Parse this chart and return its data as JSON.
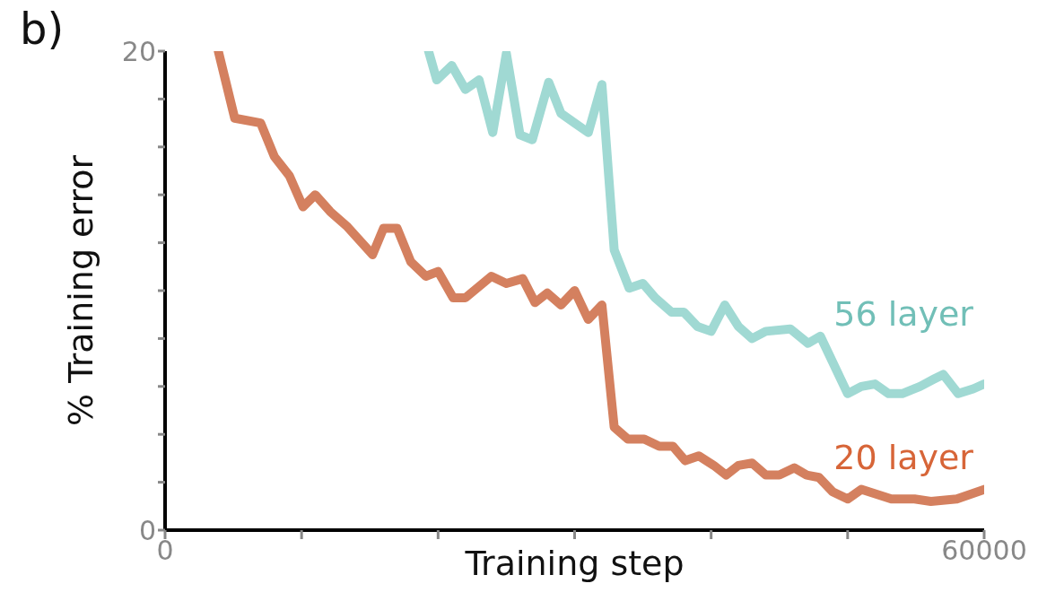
{
  "chart_data": {
    "type": "line",
    "xlabel": "Training step",
    "ylabel": "% Training error",
    "annotations": [
      "b)"
    ],
    "xlim": [
      0,
      60000
    ],
    "ylim": [
      0,
      20
    ],
    "xticks": [
      0,
      {
        "value": 10000,
        "label": null
      },
      {
        "value": 20000,
        "label": null
      },
      {
        "value": 30000,
        "label": null
      },
      {
        "value": 40000,
        "label": null
      },
      {
        "value": 50000,
        "label": null
      },
      60000
    ],
    "yticks": [
      0,
      {
        "value": 2,
        "label": null
      },
      {
        "value": 4,
        "label": null
      },
      {
        "value": 6,
        "label": null
      },
      {
        "value": 8,
        "label": null
      },
      {
        "value": 10,
        "label": null
      },
      {
        "value": 12,
        "label": null
      },
      {
        "value": 14,
        "label": null
      },
      {
        "value": 16,
        "label": null
      },
      {
        "value": 18,
        "label": null
      },
      20
    ],
    "grid": false,
    "legend": false,
    "series": [
      {
        "name": "56 layer",
        "color": "#a0d9d3",
        "x": [
          19300,
          19900,
          21000,
          22000,
          23000,
          24000,
          25000,
          26000,
          26900,
          28100,
          29000,
          30000,
          31000,
          32000,
          32900,
          34000,
          35000,
          35900,
          37100,
          38000,
          39000,
          40000,
          41000,
          42000,
          43000,
          44000,
          45800,
          47100,
          48000,
          50000,
          51000,
          52000,
          53000,
          54000,
          55300,
          56300,
          57000,
          58100,
          59200,
          60000
        ],
        "values": [
          20.0,
          18.8,
          19.4,
          18.4,
          18.8,
          16.6,
          19.9,
          16.5,
          16.3,
          18.7,
          17.4,
          17.0,
          16.6,
          18.6,
          11.7,
          10.1,
          10.3,
          9.7,
          9.1,
          9.1,
          8.5,
          8.3,
          9.4,
          8.5,
          8.0,
          8.3,
          8.4,
          7.8,
          8.1,
          5.7,
          6.0,
          6.1,
          5.7,
          5.7,
          6.0,
          6.3,
          6.5,
          5.7,
          5.9,
          6.1
        ]
      },
      {
        "name": "20 layer",
        "color": "#d4805f",
        "x": [
          3900,
          5100,
          7000,
          8000,
          9100,
          10100,
          11000,
          12100,
          13300,
          15200,
          16000,
          17000,
          18000,
          19100,
          20000,
          21100,
          22000,
          23900,
          25000,
          26200,
          27100,
          28000,
          29000,
          30000,
          31000,
          32000,
          32900,
          33900,
          35100,
          36200,
          37200,
          38100,
          39100,
          40200,
          41100,
          42000,
          43000,
          44000,
          45000,
          46100,
          47000,
          47900,
          48900,
          50000,
          51000,
          53200,
          54900,
          56100,
          58000,
          60000
        ],
        "values": [
          20.0,
          17.2,
          17.0,
          15.6,
          14.8,
          13.5,
          14.0,
          13.3,
          12.7,
          11.5,
          12.6,
          12.6,
          11.2,
          10.6,
          10.8,
          9.7,
          9.7,
          10.6,
          10.3,
          10.5,
          9.5,
          9.9,
          9.4,
          10.0,
          8.8,
          9.4,
          4.3,
          3.8,
          3.8,
          3.5,
          3.5,
          2.9,
          3.1,
          2.7,
          2.3,
          2.7,
          2.8,
          2.3,
          2.3,
          2.6,
          2.3,
          2.2,
          1.6,
          1.3,
          1.7,
          1.3,
          1.3,
          1.2,
          1.3,
          1.7
        ]
      }
    ]
  }
}
